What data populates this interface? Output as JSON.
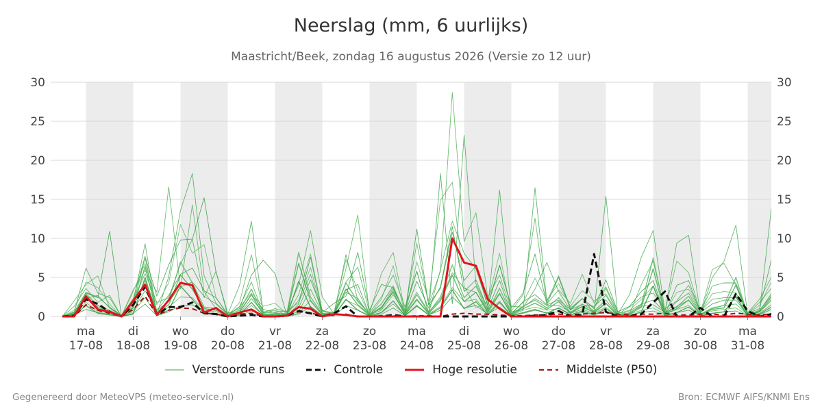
{
  "header": {
    "title": "Neerslag (mm, 6 uurlijks)",
    "subtitle": "Maastricht/Beek, zondag 16 augustus 2026 (Versie zo 12 uur)"
  },
  "footer": {
    "left": "Gegenereerd door MeteoVPS (meteo-service.nl)",
    "right": "Bron: ECMWF AIFS/KNMI Ens"
  },
  "legend": [
    {
      "label": "Verstoorde runs",
      "color": "#3aa64a",
      "style": "thin-solid"
    },
    {
      "label": "Controle",
      "color": "#111111",
      "style": "dashed"
    },
    {
      "label": "Hoge resolutie",
      "color": "#e0141e",
      "style": "solid"
    },
    {
      "label": "Middelste (P50)",
      "color": "#a01010",
      "style": "dashed"
    }
  ],
  "chart_data": {
    "type": "line",
    "title": "Neerslag (mm, 6 uurlijks)",
    "ylim": [
      0,
      30
    ],
    "yticks": [
      0,
      5,
      10,
      15,
      20,
      25,
      30
    ],
    "y_axis_both_sides": true,
    "grid": true,
    "x_start": "2026-08-16 12:00",
    "x_end": "2026-09-01 06:00",
    "x_step_hours": 6,
    "day_ticks": [
      {
        "day": "ma",
        "date": "17-08"
      },
      {
        "day": "di",
        "date": "18-08"
      },
      {
        "day": "wo",
        "date": "19-08"
      },
      {
        "day": "do",
        "date": "20-08"
      },
      {
        "day": "vr",
        "date": "21-08"
      },
      {
        "day": "za",
        "date": "22-08"
      },
      {
        "day": "zo",
        "date": "23-08"
      },
      {
        "day": "ma",
        "date": "24-08"
      },
      {
        "day": "di",
        "date": "25-08"
      },
      {
        "day": "wo",
        "date": "26-08"
      },
      {
        "day": "do",
        "date": "27-08"
      },
      {
        "day": "vr",
        "date": "28-08"
      },
      {
        "day": "za",
        "date": "29-08"
      },
      {
        "day": "zo",
        "date": "30-08"
      },
      {
        "day": "ma",
        "date": "31-08"
      }
    ],
    "shaded_days": [
      "17-08",
      "19-08",
      "21-08",
      "23-08",
      "25-08",
      "27-08",
      "29-08",
      "31-08"
    ],
    "series": [
      {
        "name": "Hoge resolutie",
        "color": "#e0141e",
        "values": [
          0,
          0,
          2.6,
          0.9,
          0.6,
          0,
          2,
          4.1,
          0.2,
          2.1,
          4.3,
          4,
          0.5,
          1.1,
          0,
          0.5,
          0.9,
          0,
          0,
          0.1,
          1.2,
          1,
          0,
          0.3,
          0.2,
          0,
          0,
          0,
          0,
          0,
          0,
          0,
          0,
          10,
          6.9,
          6.5,
          2.2,
          1,
          0,
          0,
          0,
          0,
          0,
          0,
          0,
          0,
          0,
          0,
          0,
          0,
          0,
          0,
          0,
          0,
          0,
          0,
          0,
          0,
          0,
          0,
          0,
          0,
          0,
          0
        ]
      },
      {
        "name": "Controle",
        "color": "#111111",
        "values": [
          0,
          0.1,
          2.2,
          1.6,
          0.6,
          0,
          1.5,
          3.8,
          0.3,
          1.2,
          1.2,
          1.8,
          0.4,
          0.3,
          0,
          0.1,
          0.2,
          0,
          0,
          0.1,
          0.7,
          0.4,
          0,
          0.4,
          1.3,
          0,
          0,
          0,
          0.2,
          0,
          0,
          0,
          0,
          0,
          0,
          0,
          0,
          0,
          0,
          0,
          0.1,
          0.2,
          0.7,
          0,
          0.2,
          8,
          0.6,
          0,
          0,
          0.3,
          1.8,
          3.2,
          0,
          0,
          1.1,
          0,
          0,
          2.9,
          0.7,
          0,
          0.3,
          1.5,
          3.1,
          2.9
        ]
      },
      {
        "name": "Middelste (P50)",
        "color": "#a01010",
        "values": [
          0,
          0,
          1.5,
          0.8,
          0.4,
          0,
          0.9,
          2.6,
          0.2,
          0.8,
          1.1,
          1,
          0.4,
          0.3,
          0,
          0.3,
          0.4,
          0,
          0,
          0.1,
          0.6,
          0.5,
          0,
          0.2,
          0.3,
          0,
          0,
          0.1,
          0.1,
          0,
          0.1,
          0.1,
          0,
          0.3,
          0.4,
          0.3,
          0.3,
          0.2,
          0.1,
          0.1,
          0.2,
          0.2,
          0.3,
          0.2,
          0.3,
          0.4,
          0.5,
          0.3,
          0.2,
          0.3,
          0.3,
          0.4,
          0.2,
          0.2,
          0.3,
          0.3,
          0.2,
          0.4,
          0.3,
          0.2,
          0.3,
          0.3,
          0.3,
          0.3
        ]
      }
    ],
    "members": [
      [
        0,
        0.5,
        6.2,
        3,
        2.4,
        0,
        1.8,
        9.3,
        0.3,
        5.1,
        13.6,
        18.3,
        5.2,
        1.7,
        0.3,
        4,
        12.2,
        0.5,
        1,
        0.6,
        4,
        11,
        2.5,
        0.3,
        7.9,
        2.1,
        0.3,
        1,
        3.3,
        0.8,
        5.8,
        0.4,
        18.3,
        1.6,
        23.2,
        4.2,
        1,
        16.2,
        0.6,
        0.9,
        16.5,
        1.9,
        5.2,
        1.1,
        2.3,
        0.5,
        15.4,
        0.3,
        2.8,
        7.6,
        11,
        0.6,
        9.4,
        10.4,
        0.3,
        5,
        7.1,
        11.7,
        0.2,
        0.6,
        13.8,
        0.7,
        4.5,
        3.9
      ],
      [
        0,
        2,
        4.1,
        5.2,
        1.1,
        0.1,
        3.4,
        5.9,
        3.1,
        16.6,
        3.5,
        14.3,
        3.2,
        1,
        0.1,
        1.8,
        7.9,
        0.6,
        0.8,
        0.2,
        2.8,
        8,
        0.7,
        0.5,
        6.1,
        13,
        0.4,
        5.5,
        8.2,
        0.6,
        9.4,
        1.5,
        5.8,
        28.7,
        9.6,
        13.3,
        2.5,
        5.3,
        0.7,
        2.8,
        12.6,
        1.6,
        3.4,
        1.7,
        5.4,
        1.7,
        3.8,
        0.6,
        0.3,
        4.1,
        7.1,
        0.7,
        7.1,
        5.6,
        0.5,
        6,
        6.8,
        4,
        0.5,
        2.2,
        5,
        2.8,
        9.8,
        3.2
      ],
      [
        0,
        0.3,
        3,
        2.4,
        10.9,
        0.1,
        2.3,
        7.7,
        2.6,
        6.6,
        9.8,
        9.9,
        15.2,
        5.7,
        0.4,
        1,
        5.3,
        7.2,
        5.5,
        0.1,
        1.6,
        7.6,
        0.5,
        1.7,
        2.6,
        8.2,
        0.8,
        4.1,
        3.7,
        0.4,
        11.2,
        1.5,
        3.6,
        10.8,
        4.6,
        6.5,
        1.3,
        6.5,
        1.1,
        3,
        8,
        1.6,
        5,
        0.9,
        2.3,
        1,
        4.7,
        0.6,
        1.3,
        3.2,
        4.6,
        0.3,
        4,
        4.6,
        0.5,
        3.9,
        4.3,
        4.3,
        0.4,
        1,
        7.2,
        1.2,
        4.4,
        2.6
      ],
      [
        0,
        0.8,
        4.4,
        3.7,
        1.6,
        0,
        3.2,
        6.8,
        1.5,
        4.3,
        11.8,
        8.1,
        9.2,
        2.4,
        0.2,
        1.2,
        3,
        1.3,
        1.7,
        0.3,
        2.1,
        6.3,
        0.4,
        0.6,
        7.3,
        3.3,
        0.2,
        2.2,
        6.5,
        0.3,
        7,
        2,
        14.9,
        17.2,
        3.9,
        1.1,
        1.9,
        8.1,
        0.4,
        1.8,
        4.9,
        2.1,
        4.2,
        1.3,
        3.3,
        2,
        2.9,
        0.4,
        0.8,
        2.2,
        3.9,
        0.5,
        3.1,
        3.5,
        0.6,
        2.9,
        3.2,
        3,
        0.4,
        1.4,
        4.4,
        1.8,
        3.1,
        2.5
      ],
      [
        0,
        1.3,
        3.6,
        1.8,
        2.7,
        0,
        2,
        5.5,
        1.8,
        2.4,
        6.7,
        9.9,
        2.4,
        5.8,
        0.1,
        1.3,
        4.4,
        0.4,
        0.6,
        0.7,
        1.8,
        5.4,
        0.3,
        0.5,
        4.4,
        6.3,
        0.5,
        2.5,
        5.3,
        1.2,
        5.8,
        0.4,
        6,
        12.2,
        8.1,
        6.1,
        1.5,
        6.6,
        1.3,
        1.2,
        3.5,
        6.9,
        3.2,
        0.8,
        2.3,
        1.1,
        3.6,
        0.3,
        1.2,
        2.5,
        3,
        1,
        2,
        4,
        0.7,
        2.2,
        2.4,
        2.4,
        0.4,
        1.8,
        3.6,
        1.2,
        2.7,
        2.4
      ],
      [
        0,
        0.6,
        3.1,
        2.5,
        1.2,
        0.1,
        1.2,
        4.6,
        0.8,
        2.7,
        5.4,
        6.2,
        3.3,
        2.4,
        0.3,
        0.5,
        2.8,
        0.9,
        0.5,
        0.2,
        1.1,
        4.7,
        0.8,
        0.3,
        3.4,
        4.1,
        0.2,
        1.1,
        3.6,
        0.4,
        4.5,
        1.1,
        3.8,
        11.5,
        3.2,
        4.7,
        0.9,
        4.6,
        0.3,
        1.9,
        2.8,
        1.5,
        2.1,
        0.9,
        1.5,
        1.3,
        2.7,
        0.2,
        0.7,
        1.6,
        2.1,
        0.5,
        1.9,
        3,
        0.5,
        1.6,
        2.1,
        2.1,
        0.2,
        0.7,
        2.9,
        0.9,
        1.9,
        1.6
      ],
      [
        0,
        0.4,
        2.3,
        2.7,
        1.1,
        0,
        0.8,
        3.3,
        0.8,
        1.9,
        3.8,
        4.4,
        2.6,
        1.6,
        0.2,
        0.3,
        2.3,
        0.5,
        0.4,
        0.2,
        0.6,
        3.5,
        0.4,
        0.3,
        3.1,
        2.3,
        0.2,
        0.8,
        2.8,
        0.4,
        3.1,
        0.6,
        2.2,
        5.6,
        3.6,
        3.1,
        0.8,
        3,
        0.2,
        1.2,
        2.3,
        1.4,
        1.4,
        0.6,
        1.2,
        0.6,
        1.7,
        0.1,
        0.5,
        1.3,
        1.5,
        0.5,
        1.3,
        2.1,
        0.3,
        1,
        1.4,
        1.6,
        0.2,
        0.6,
        2.4,
        0.6,
        1.4,
        1.1
      ],
      [
        0,
        0.2,
        1.8,
        0.6,
        0.5,
        0,
        0.6,
        2.4,
        0.2,
        1.2,
        2.5,
        2.4,
        0.8,
        0.6,
        0.1,
        0.2,
        1.4,
        0.2,
        0.2,
        0.1,
        0.4,
        2.1,
        0.2,
        0.2,
        2.1,
        1.4,
        0.1,
        0.5,
        1.6,
        0.2,
        2.1,
        0.3,
        1.3,
        3.7,
        1.9,
        2.2,
        0.4,
        2,
        0.1,
        0.8,
        1.2,
        0.8,
        1,
        0.4,
        0.9,
        0.4,
        1.2,
        0.1,
        0.3,
        0.8,
        1.1,
        0.3,
        0.9,
        1.4,
        0.2,
        0.7,
        0.9,
        1.1,
        0.1,
        0.4,
        1.5,
        0.4,
        0.9,
        0.8
      ],
      [
        0,
        0.2,
        0.9,
        0.5,
        0.3,
        0,
        0.4,
        1.6,
        0.1,
        0.6,
        1.4,
        1.5,
        0.5,
        0.4,
        0,
        0.1,
        0.7,
        0.1,
        0.1,
        0,
        0.3,
        1.3,
        0.1,
        0.1,
        1.4,
        0.8,
        0,
        0.3,
        1.1,
        0.1,
        1.3,
        0.2,
        0.8,
        2.5,
        1.1,
        1.4,
        0.3,
        1.2,
        0.1,
        0.4,
        0.8,
        0.5,
        0.6,
        0.2,
        0.5,
        0.2,
        0.7,
        0,
        0.2,
        0.5,
        0.7,
        0.2,
        0.5,
        0.8,
        0.1,
        0.4,
        0.6,
        0.7,
        0.1,
        0.2,
        0.9,
        0.2,
        0.6,
        0.5
      ],
      [
        0,
        0.5,
        2.9,
        1.4,
        0.8,
        0,
        1.5,
        7.6,
        0.5,
        2,
        7,
        4.3,
        1.2,
        1,
        0.2,
        0.8,
        3.5,
        0.3,
        0.3,
        0.4,
        8.2,
        2.5,
        0.3,
        0.4,
        4.3,
        1.9,
        0.3,
        1.6,
        3.9,
        0.3,
        2.8,
        0.5,
        2.5,
        6.6,
        2.4,
        3.9,
        0.6,
        3.6,
        0.3,
        1.3,
        2.1,
        1.1,
        2.4,
        0.5,
        1.6,
        0.7,
        2.1,
        0.2,
        0.4,
        1.5,
        7.5,
        0.4,
        1.2,
        2.6,
        0.3,
        1.1,
        1.4,
        5,
        0.2,
        0.8,
        2.6,
        0.6,
        1.7,
        1.4
      ],
      [
        0,
        0.3,
        2.6,
        1.2,
        0.6,
        0,
        1.1,
        6.4,
        0.4,
        1.5,
        5.3,
        3.5,
        1,
        0.8,
        0.1,
        0.6,
        2.8,
        0.2,
        0.2,
        0.3,
        6.8,
        2,
        0.2,
        0.3,
        3.5,
        1.5,
        0.2,
        1.2,
        3.1,
        0.2,
        2.2,
        0.4,
        2,
        5.3,
        1.9,
        3.1,
        0.5,
        2.9,
        0.2,
        1,
        1.7,
        0.9,
        1.9,
        0.4,
        1.3,
        0.5,
        1.7,
        0.1,
        0.3,
        1.2,
        6.1,
        0.3,
        1,
        2.1,
        0.2,
        0.9,
        1.1,
        4,
        0.1,
        0.6,
        2.1,
        0.5,
        1.4,
        1.1
      ],
      [
        0,
        0.2,
        1.4,
        0.4,
        0.2,
        0,
        0.3,
        5,
        0.1,
        0.8,
        3.9,
        2.2,
        0.4,
        0.3,
        0,
        0.2,
        1.8,
        0.1,
        0.1,
        0.1,
        4.5,
        1.2,
        0.1,
        0.1,
        2.2,
        0.8,
        0.1,
        0.5,
        2,
        0.1,
        1.4,
        0.2,
        1.1,
        3.4,
        1,
        1.9,
        0.2,
        1.8,
        0.1,
        0.5,
        0.9,
        0.4,
        1.1,
        0.2,
        0.7,
        0.2,
        1,
        0,
        0.1,
        0.6,
        3.9,
        0.1,
        0.5,
        1.2,
        0.1,
        0.4,
        0.6,
        2.6,
        0,
        0.3,
        1.2,
        0.2,
        0.8,
        0.6
      ]
    ]
  }
}
